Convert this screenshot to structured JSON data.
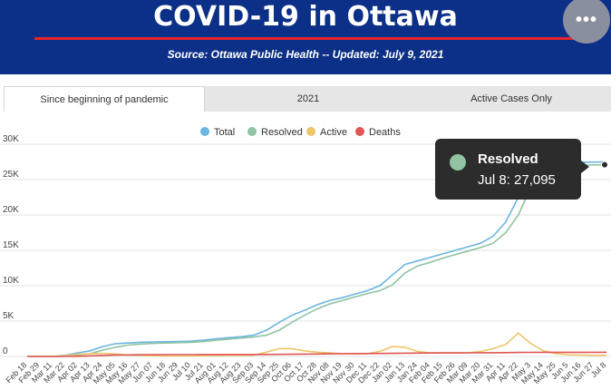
{
  "header": {
    "title": "COVID-19 in Ottawa",
    "subtitle": "Source:  Ottawa Public Health -- Updated:  July 9, 2021",
    "more_icon": "more-horizontal-icon",
    "more_glyph": "•••",
    "background_color": "#0c2f87",
    "accent_color": "#e8232a"
  },
  "tabs": [
    {
      "label": "Since beginning of pandemic",
      "active": true
    },
    {
      "label": "2021",
      "active": false
    },
    {
      "label": "Active Cases Only",
      "active": false
    }
  ],
  "tooltip": {
    "series": "Resolved",
    "value": "Jul 8: 27,095",
    "color": "#8fc3a1"
  },
  "chart_data": {
    "type": "line",
    "title": "",
    "xlabel": "",
    "ylabel": "",
    "legend_position": "top-center",
    "grid": true,
    "ylim": [
      0,
      30000
    ],
    "y_ticks": [
      "0",
      "5K",
      "10K",
      "15K",
      "20K",
      "25K",
      "30K"
    ],
    "categories": [
      "Feb 18",
      "Feb 29",
      "Mar 11",
      "Mar 22",
      "Apr 02",
      "Apr 13",
      "Apr 24",
      "May 05",
      "May 16",
      "May 27",
      "Jun 07",
      "Jun 18",
      "Jun 29",
      "Jul 10",
      "Jul 21",
      "Aug 01",
      "Aug 12",
      "Aug 23",
      "Sep 03",
      "Sep 14",
      "Sep 25",
      "Oct 06",
      "Oct 17",
      "Oct 28",
      "Nov 08",
      "Nov 19",
      "Nov 30",
      "Dec 11",
      "Dec 22",
      "Jan 02",
      "Jan 13",
      "Jan 24",
      "Feb 04",
      "Feb 15",
      "Feb 26",
      "Mar 09",
      "Mar 20",
      "Mar 31",
      "Apr 11",
      "Apr 22",
      "May 3",
      "May 14",
      "May 25",
      "Jun 5",
      "Jun 16",
      "Jun 27",
      "Jul 8"
    ],
    "series": [
      {
        "name": "Total",
        "color": "#6bb6e0",
        "values": [
          0,
          0,
          5,
          150,
          500,
          800,
          1400,
          1800,
          1900,
          2000,
          2050,
          2080,
          2100,
          2150,
          2300,
          2500,
          2650,
          2800,
          3000,
          3700,
          4800,
          5800,
          6500,
          7300,
          7900,
          8300,
          8800,
          9300,
          10000,
          11500,
          13000,
          13500,
          14000,
          14500,
          15000,
          15500,
          16000,
          17000,
          19000,
          22500,
          25500,
          27000,
          27300,
          27400,
          27450,
          27480,
          27500
        ]
      },
      {
        "name": "Resolved",
        "color": "#8fc3a1",
        "values": [
          0,
          0,
          0,
          20,
          200,
          400,
          900,
          1300,
          1600,
          1750,
          1850,
          1900,
          1950,
          2000,
          2100,
          2300,
          2450,
          2600,
          2750,
          3000,
          3700,
          4800,
          5800,
          6700,
          7400,
          7900,
          8400,
          8900,
          9300,
          10100,
          11800,
          12800,
          13300,
          13900,
          14400,
          14900,
          15400,
          16000,
          17500,
          20000,
          24000,
          26500,
          26900,
          27000,
          27050,
          27080,
          27095
        ]
      },
      {
        "name": "Active",
        "color": "#edc56a",
        "values": [
          0,
          0,
          5,
          100,
          300,
          400,
          450,
          350,
          200,
          150,
          100,
          80,
          70,
          70,
          100,
          130,
          150,
          150,
          180,
          600,
          1100,
          1100,
          800,
          600,
          500,
          400,
          400,
          400,
          700,
          1400,
          1300,
          700,
          500,
          500,
          500,
          500,
          700,
          1100,
          1700,
          3300,
          1800,
          800,
          400,
          250,
          200,
          150,
          150
        ]
      },
      {
        "name": "Deaths",
        "color": "#e05555",
        "values": [
          0,
          0,
          0,
          5,
          30,
          80,
          150,
          200,
          220,
          240,
          250,
          255,
          260,
          262,
          265,
          268,
          270,
          272,
          275,
          280,
          290,
          310,
          330,
          350,
          370,
          390,
          400,
          410,
          420,
          440,
          460,
          480,
          490,
          500,
          505,
          510,
          520,
          530,
          540,
          560,
          580,
          590,
          595,
          595,
          596,
          596,
          596
        ]
      }
    ]
  }
}
